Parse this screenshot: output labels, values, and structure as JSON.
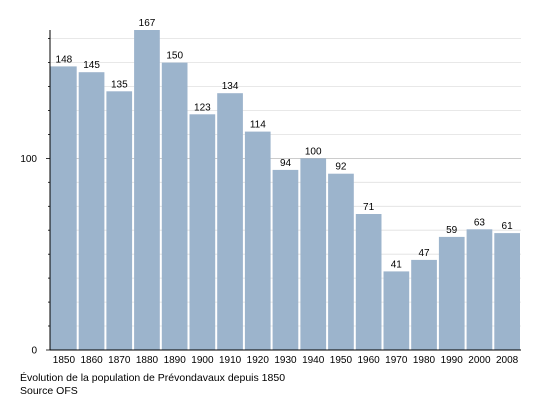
{
  "chart_data": {
    "type": "bar",
    "categories": [
      "1850",
      "1860",
      "1870",
      "1880",
      "1890",
      "1900",
      "1910",
      "1920",
      "1930",
      "1940",
      "1950",
      "1960",
      "1970",
      "1980",
      "1990",
      "2000",
      "2008"
    ],
    "values": [
      148,
      145,
      135,
      167,
      150,
      123,
      134,
      114,
      94,
      100,
      92,
      71,
      41,
      47,
      59,
      63,
      61
    ],
    "ylim": [
      0,
      167
    ],
    "yticks": [
      "0",
      "100"
    ],
    "grid": true,
    "bar_color": "#9cb4cc",
    "grid_color": "#e0e0e0",
    "caption": "Évolution de la population de Prévondavaux depuis 1850",
    "source": "Source OFS"
  }
}
